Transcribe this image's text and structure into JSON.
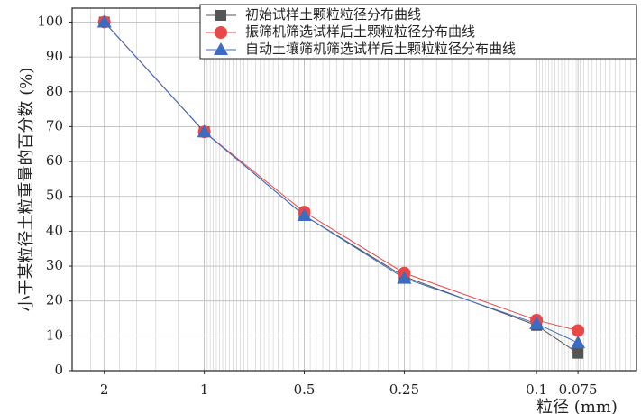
{
  "chart_data": {
    "type": "line",
    "x_label": "粒径 (mm)",
    "y_label": "小于某粒径土粒重量的百分数 (%)",
    "x": [
      2,
      1,
      0.5,
      0.25,
      0.1,
      0.075
    ],
    "xlim": [
      2.5,
      0.05
    ],
    "x_log": true,
    "x_reversed": true,
    "xticks": [
      2,
      1,
      0.5,
      0.25,
      0.1,
      0.075
    ],
    "ylim": [
      0,
      104
    ],
    "yticks": [
      0,
      10,
      20,
      30,
      40,
      50,
      60,
      70,
      80,
      90,
      100
    ],
    "grid": true,
    "legend": "upper right",
    "series": [
      {
        "name": "初始试样土颗粒粒径分布曲线",
        "color": "#555555",
        "marker": "square",
        "values": [
          100,
          68.5,
          44.5,
          27,
          13,
          5
        ]
      },
      {
        "name": "振筛机筛选试样后土颗粒粒径分布曲线",
        "color": "#e84848",
        "marker": "circle",
        "values": [
          100,
          68.5,
          45.5,
          28,
          14.5,
          11.5
        ]
      },
      {
        "name": "自动土壤筛机筛选试样后土颗粒粒径分布曲线",
        "color": "#3a6cc6",
        "marker": "triangle",
        "values": [
          100,
          68.5,
          44.5,
          26.5,
          13.5,
          8
        ]
      }
    ]
  }
}
